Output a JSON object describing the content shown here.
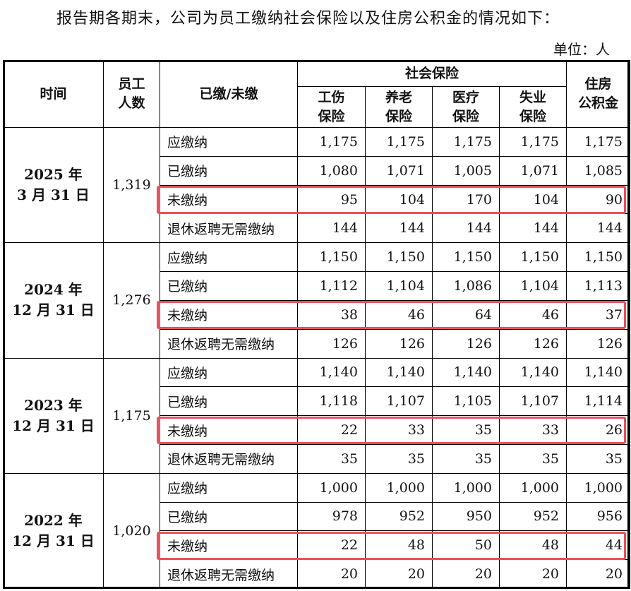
{
  "intro": "报告期各期末，公司为员工缴纳社会保险以及住房公积金的情况如下：",
  "unit": "单位：人",
  "header": {
    "time": "时间",
    "employees": [
      "员工",
      "人数"
    ],
    "paid_status": "已缴/未缴",
    "social_insurance": "社会保险",
    "injury": [
      "工伤",
      "保险"
    ],
    "pension": [
      "养老",
      "保险"
    ],
    "medical": [
      "医疗",
      "保险"
    ],
    "unemployment": [
      "失业",
      "保险"
    ],
    "housing_fund": [
      "住房",
      "公积金"
    ]
  },
  "periods": [
    {
      "year": "2025 年",
      "date": "3 月 31 日",
      "employees": "1,319",
      "rows": [
        {
          "label": "应缴纳",
          "values": [
            "1,175",
            "1,175",
            "1,175",
            "1,175",
            "1,175"
          ]
        },
        {
          "label": "已缴纳",
          "values": [
            "1,080",
            "1,071",
            "1,005",
            "1,071",
            "1,085"
          ]
        },
        {
          "label": "未缴纳",
          "values": [
            "95",
            "104",
            "170",
            "104",
            "90"
          ]
        },
        {
          "label": "退休返聘无需缴纳",
          "values": [
            "144",
            "144",
            "144",
            "144",
            "144"
          ]
        }
      ]
    },
    {
      "year": "2024 年",
      "date": "12 月 31 日",
      "employees": "1,276",
      "rows": [
        {
          "label": "应缴纳",
          "values": [
            "1,150",
            "1,150",
            "1,150",
            "1,150",
            "1,150"
          ]
        },
        {
          "label": "已缴纳",
          "values": [
            "1,112",
            "1,104",
            "1,086",
            "1,104",
            "1,113"
          ]
        },
        {
          "label": "未缴纳",
          "values": [
            "38",
            "46",
            "64",
            "46",
            "37"
          ]
        },
        {
          "label": "退休返聘无需缴纳",
          "values": [
            "126",
            "126",
            "126",
            "126",
            "126"
          ]
        }
      ]
    },
    {
      "year": "2023 年",
      "date": "12 月 31 日",
      "employees": "1,175",
      "rows": [
        {
          "label": "应缴纳",
          "values": [
            "1,140",
            "1,140",
            "1,140",
            "1,140",
            "1,140"
          ]
        },
        {
          "label": "已缴纳",
          "values": [
            "1,118",
            "1,107",
            "1,105",
            "1,107",
            "1,114"
          ]
        },
        {
          "label": "未缴纳",
          "values": [
            "22",
            "33",
            "35",
            "33",
            "26"
          ]
        },
        {
          "label": "退休返聘无需缴纳",
          "values": [
            "35",
            "35",
            "35",
            "35",
            "35"
          ]
        }
      ]
    },
    {
      "year": "2022 年",
      "date": "12 月 31 日",
      "employees": "1,020",
      "rows": [
        {
          "label": "应缴纳",
          "values": [
            "1,000",
            "1,000",
            "1,000",
            "1,000",
            "1,000"
          ]
        },
        {
          "label": "已缴纳",
          "values": [
            "978",
            "952",
            "950",
            "952",
            "956"
          ]
        },
        {
          "label": "未缴纳",
          "values": [
            "22",
            "48",
            "50",
            "48",
            "44"
          ]
        },
        {
          "label": "退休返聘无需缴纳",
          "values": [
            "20",
            "20",
            "20",
            "20",
            "20"
          ]
        }
      ]
    }
  ],
  "highlight_color": "#e8505b"
}
